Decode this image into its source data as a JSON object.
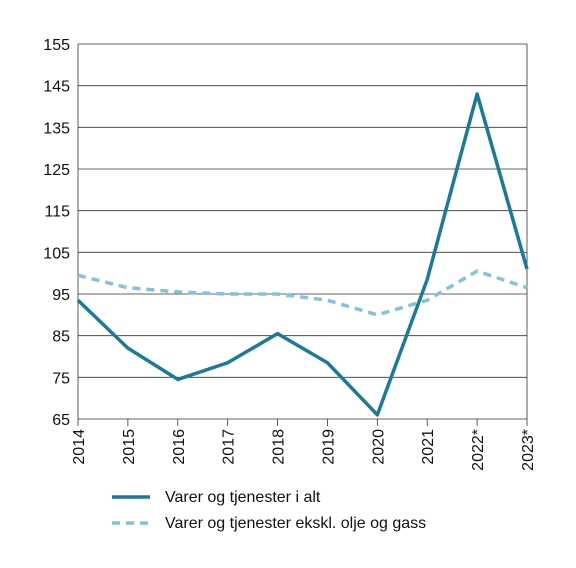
{
  "chart_data": {
    "type": "line",
    "categories": [
      "2014",
      "2015",
      "2016",
      "2017",
      "2018",
      "2019",
      "2020",
      "2021",
      "2022*",
      "2023*"
    ],
    "ylim": [
      65,
      155
    ],
    "yticks": [
      65,
      75,
      85,
      95,
      105,
      115,
      125,
      135,
      145,
      155
    ],
    "grid": "horizontal",
    "legend_position": "bottom",
    "series": [
      {
        "name": "Varer og tjenester i alt",
        "color": "#1a7a9c",
        "style": "solid",
        "values": [
          93.5,
          82,
          74.5,
          78.5,
          85.5,
          78.5,
          66,
          98.5,
          143,
          101
        ]
      },
      {
        "name": "Varer og tjenester ekskl. olje og gass",
        "color": "#7fc3df",
        "style": "dashed",
        "values": [
          99.5,
          96.5,
          95.5,
          95,
          95,
          93.5,
          90,
          93.5,
          100.5,
          96.5
        ]
      }
    ]
  }
}
